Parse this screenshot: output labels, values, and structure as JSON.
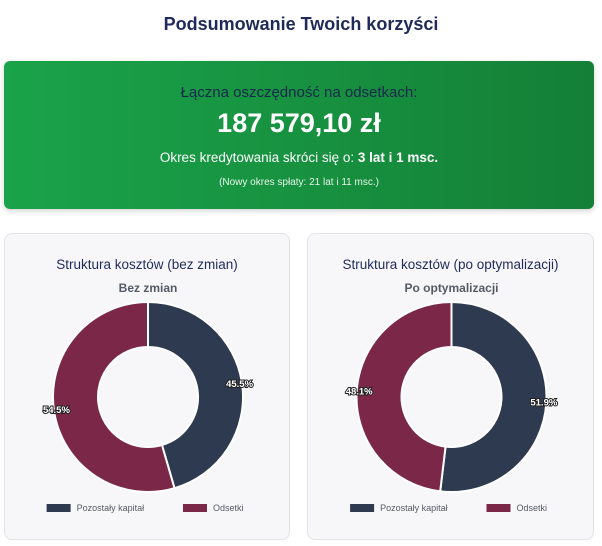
{
  "page": {
    "title": "Podsumowanie Twoich korzyści"
  },
  "savings": {
    "label": "Łączna oszczędność na odsetkach:",
    "amount": "187 579,10 zł",
    "shorten_prefix": "Okres kredytowania skróci się o: ",
    "shorten_value": "3 lat i 1 msc.",
    "new_term": "(Nowy okres spłaty: 21 lat i 11 msc.)"
  },
  "cards": [
    {
      "title": "Struktura kosztów (bez zmian)"
    },
    {
      "title": "Struktura kosztów (po optymalizacji)"
    }
  ],
  "colors": {
    "capital": "#2e3a50",
    "interest": "#7b2848",
    "green_start": "#1aa34a",
    "green_end": "#147f37"
  },
  "chart_data": [
    {
      "type": "pie",
      "title": "Bez zmian",
      "categories": [
        "Pozostały kapitał",
        "Odsetki"
      ],
      "values": [
        45.5,
        54.5
      ],
      "value_labels": [
        "45.5%",
        "54.5%"
      ],
      "colors": [
        "#2e3a50",
        "#7b2848"
      ],
      "donut": true,
      "legend": "bottom"
    },
    {
      "type": "pie",
      "title": "Po optymalizacji",
      "categories": [
        "Pozostały kapitał",
        "Odsetki"
      ],
      "values": [
        51.9,
        48.1
      ],
      "value_labels": [
        "51.9%",
        "48.1%"
      ],
      "colors": [
        "#2e3a50",
        "#7b2848"
      ],
      "donut": true,
      "legend": "bottom"
    }
  ]
}
